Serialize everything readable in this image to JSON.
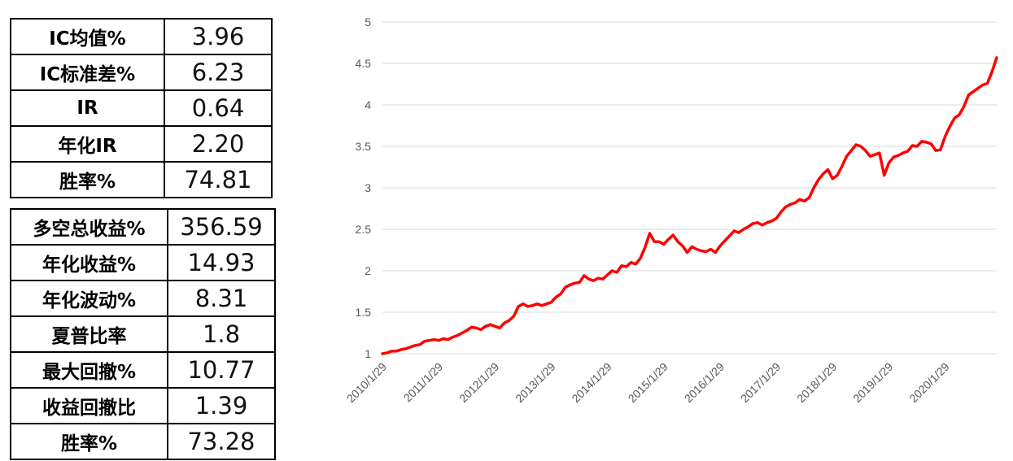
{
  "table1": {
    "rows": [
      {
        "label": "IC均值%",
        "value": "3.96"
      },
      {
        "label": "IC标准差%",
        "value": "6.23"
      },
      {
        "label": "IR",
        "value": "0.64"
      },
      {
        "label": "年化IR",
        "value": "2.20"
      },
      {
        "label": "胜率%",
        "value": "74.81"
      }
    ]
  },
  "table2": {
    "rows": [
      {
        "label": "多空总收益%",
        "value": "356.59"
      },
      {
        "label": "年化收益%",
        "value": "14.93"
      },
      {
        "label": "年化波动%",
        "value": "8.31"
      },
      {
        "label": "夏普比率",
        "value": "1.8"
      },
      {
        "label": "最大回撤%",
        "value": "10.77"
      },
      {
        "label": "收益回撤比",
        "value": "1.39"
      },
      {
        "label": "胜率%",
        "value": "73.28"
      }
    ]
  },
  "chart_data": {
    "type": "line",
    "title": "",
    "xlabel": "",
    "ylabel": "",
    "ylim": [
      1,
      5
    ],
    "yticks": [
      "1",
      "1.5",
      "2",
      "2.5",
      "3",
      "3.5",
      "4",
      "4.5",
      "5"
    ],
    "xticks": [
      "2010/1/29",
      "2011/1/29",
      "2012/1/29",
      "2013/1/29",
      "2014/1/29",
      "2015/1/29",
      "2016/1/29",
      "2017/1/29",
      "2018/1/29",
      "2019/1/29",
      "2020/1/29"
    ],
    "grid": true,
    "color": "#ff0000",
    "x": [
      "2010-01",
      "2010-02",
      "2010-03",
      "2010-04",
      "2010-05",
      "2010-06",
      "2010-07",
      "2010-08",
      "2010-09",
      "2010-10",
      "2010-11",
      "2010-12",
      "2011-01",
      "2011-02",
      "2011-03",
      "2011-04",
      "2011-05",
      "2011-06",
      "2011-07",
      "2011-08",
      "2011-09",
      "2011-10",
      "2011-11",
      "2011-12",
      "2012-01",
      "2012-02",
      "2012-03",
      "2012-04",
      "2012-05",
      "2012-06",
      "2012-07",
      "2012-08",
      "2012-09",
      "2012-10",
      "2012-11",
      "2012-12",
      "2013-01",
      "2013-02",
      "2013-03",
      "2013-04",
      "2013-05",
      "2013-06",
      "2013-07",
      "2013-08",
      "2013-09",
      "2013-10",
      "2013-11",
      "2013-12",
      "2014-01",
      "2014-02",
      "2014-03",
      "2014-04",
      "2014-05",
      "2014-06",
      "2014-07",
      "2014-08",
      "2014-09",
      "2014-10",
      "2014-11",
      "2014-12",
      "2015-01",
      "2015-02",
      "2015-03",
      "2015-04",
      "2015-05",
      "2015-06",
      "2015-07",
      "2015-08",
      "2015-09",
      "2015-10",
      "2015-11",
      "2015-12",
      "2016-01",
      "2016-02",
      "2016-03",
      "2016-04",
      "2016-05",
      "2016-06",
      "2016-07",
      "2016-08",
      "2016-09",
      "2016-10",
      "2016-11",
      "2016-12",
      "2017-01",
      "2017-02",
      "2017-03",
      "2017-04",
      "2017-05",
      "2017-06",
      "2017-07",
      "2017-08",
      "2017-09",
      "2017-10",
      "2017-11",
      "2017-12",
      "2018-01",
      "2018-02",
      "2018-03",
      "2018-04",
      "2018-05",
      "2018-06",
      "2018-07",
      "2018-08",
      "2018-09",
      "2018-10",
      "2018-11",
      "2018-12",
      "2019-01",
      "2019-02",
      "2019-03",
      "2019-04",
      "2019-05",
      "2019-06",
      "2019-07",
      "2019-08",
      "2019-09",
      "2019-10",
      "2019-11",
      "2019-12",
      "2020-01",
      "2020-02",
      "2020-03",
      "2020-04",
      "2020-05",
      "2020-06",
      "2020-07",
      "2020-08",
      "2020-09",
      "2020-10",
      "2020-11",
      "2020-12"
    ],
    "values": [
      1.0,
      1.01,
      1.03,
      1.03,
      1.05,
      1.06,
      1.08,
      1.1,
      1.11,
      1.15,
      1.16,
      1.17,
      1.16,
      1.18,
      1.17,
      1.2,
      1.22,
      1.25,
      1.28,
      1.32,
      1.31,
      1.29,
      1.33,
      1.35,
      1.33,
      1.31,
      1.37,
      1.4,
      1.45,
      1.57,
      1.6,
      1.57,
      1.58,
      1.6,
      1.58,
      1.6,
      1.62,
      1.68,
      1.72,
      1.8,
      1.83,
      1.85,
      1.86,
      1.94,
      1.9,
      1.88,
      1.91,
      1.9,
      1.95,
      2.0,
      1.98,
      2.06,
      2.05,
      2.1,
      2.08,
      2.15,
      2.28,
      2.45,
      2.35,
      2.35,
      2.32,
      2.38,
      2.43,
      2.35,
      2.3,
      2.22,
      2.29,
      2.26,
      2.24,
      2.23,
      2.26,
      2.22,
      2.3,
      2.36,
      2.42,
      2.48,
      2.46,
      2.5,
      2.53,
      2.57,
      2.58,
      2.55,
      2.58,
      2.6,
      2.63,
      2.71,
      2.77,
      2.8,
      2.82,
      2.86,
      2.84,
      2.88,
      3.0,
      3.1,
      3.17,
      3.22,
      3.11,
      3.15,
      3.26,
      3.38,
      3.45,
      3.52,
      3.5,
      3.45,
      3.38,
      3.4,
      3.42,
      3.15,
      3.3,
      3.37,
      3.39,
      3.42,
      3.44,
      3.51,
      3.5,
      3.56,
      3.55,
      3.53,
      3.45,
      3.46,
      3.62,
      3.74,
      3.84,
      3.88,
      3.98,
      4.12,
      4.16,
      4.2,
      4.24,
      4.26,
      4.4,
      4.57
    ]
  }
}
